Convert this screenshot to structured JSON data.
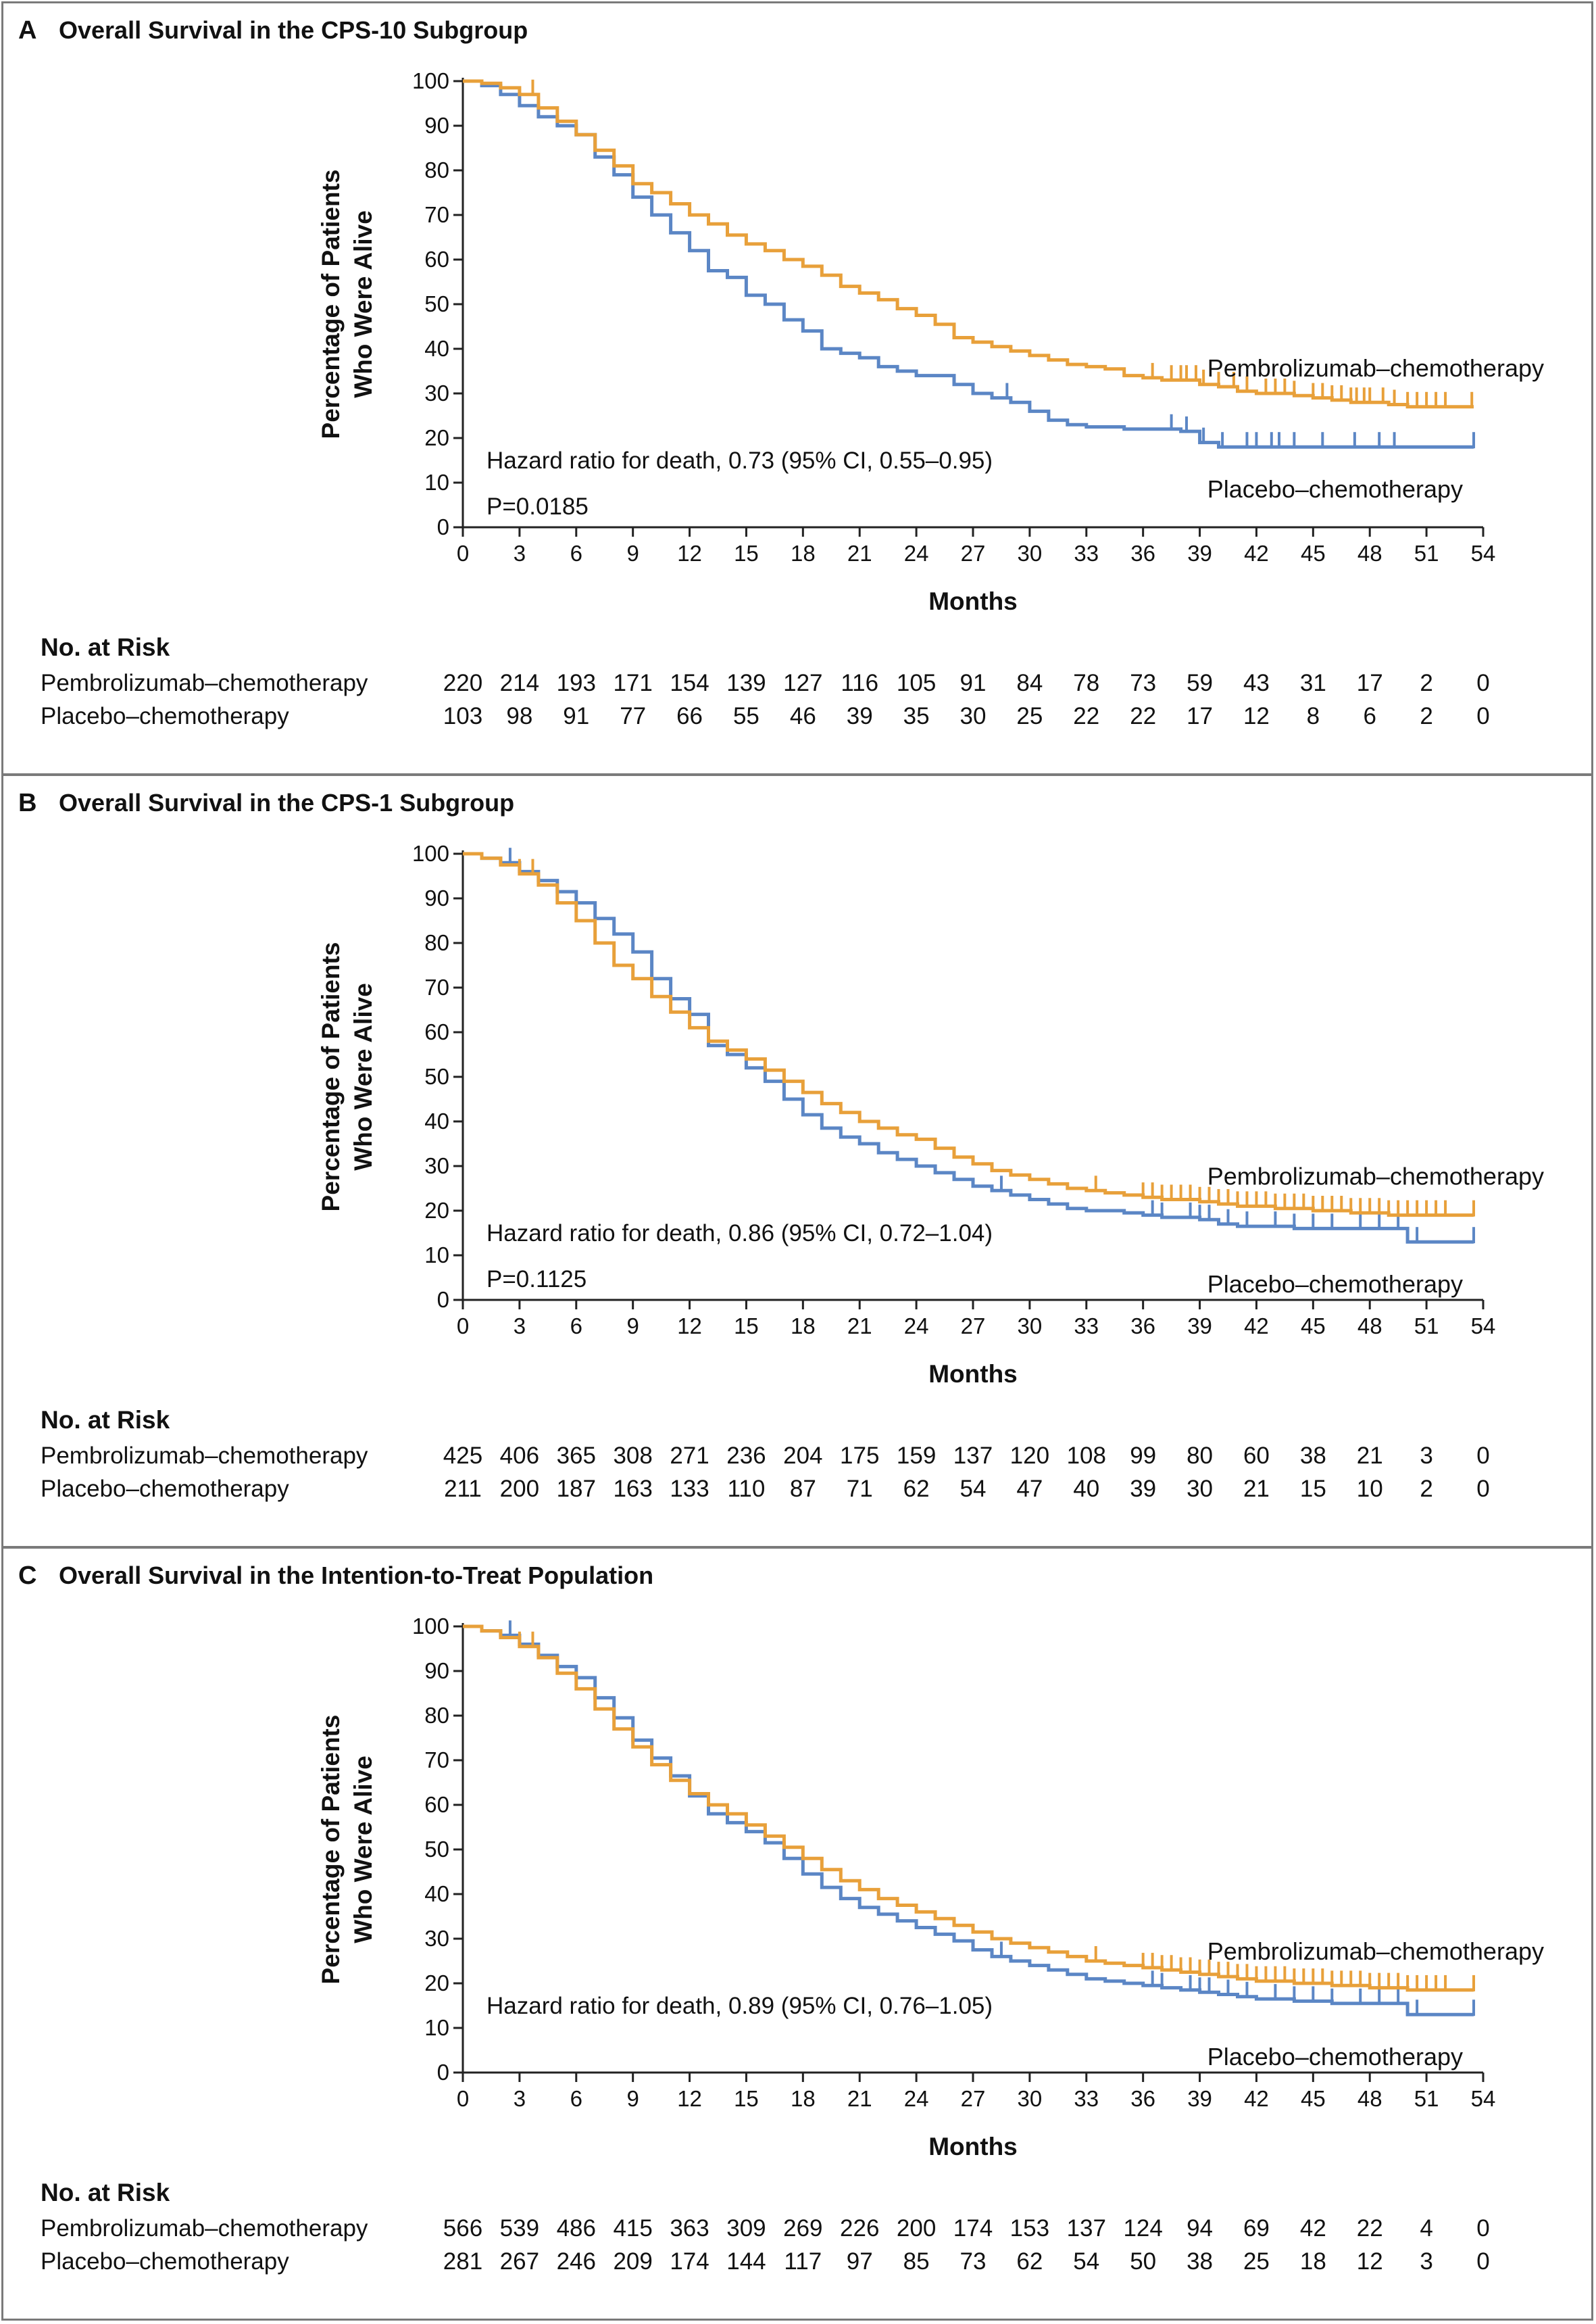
{
  "colors": {
    "pembro": "#E8A03A",
    "placebo": "#5B86C5",
    "axis": "#222222",
    "border": "#7a7a7a"
  },
  "x_axis": {
    "label": "Months",
    "ticks": [
      0,
      3,
      6,
      9,
      12,
      15,
      18,
      21,
      24,
      27,
      30,
      33,
      36,
      39,
      42,
      45,
      48,
      51,
      54
    ]
  },
  "y_axis": {
    "label_line1": "Percentage of Patients",
    "label_line2": "Who Were Alive",
    "ticks": [
      0,
      10,
      20,
      30,
      40,
      50,
      60,
      70,
      80,
      90,
      100
    ]
  },
  "risk_table_heading": "No. at Risk",
  "series_names": {
    "pembro": "Pembrolizumab–chemotherapy",
    "placebo": "Placebo–chemotherapy"
  },
  "chart_data": [
    {
      "type": "line",
      "panel_letter": "A",
      "title": "Overall Survival in the CPS-10 Subgroup",
      "xlabel": "Months",
      "ylabel": "Percentage of Patients Who Were Alive",
      "xlim": [
        0,
        54
      ],
      "ylim": [
        0,
        100
      ],
      "hazard_text": "Hazard ratio for death, 0.73 (95% CI, 0.55–0.95)",
      "p_text": "P=0.0185",
      "series": [
        {
          "name": "Pembrolizumab–chemotherapy",
          "x": [
            0,
            1,
            2,
            3,
            4,
            5,
            6,
            7,
            8,
            9,
            10,
            11,
            12,
            13,
            14,
            15,
            16,
            17,
            18,
            19,
            20,
            21,
            22,
            23,
            24,
            25,
            26,
            27,
            28,
            29,
            30,
            31,
            32,
            33,
            34,
            35,
            36,
            37,
            38,
            39,
            40,
            41,
            42,
            43,
            44,
            45,
            46,
            47,
            48,
            49,
            50,
            51,
            52,
            53.5
          ],
          "y": [
            100,
            99.5,
            98.5,
            97,
            94,
            91,
            88,
            84.5,
            81,
            77,
            75,
            72.5,
            70,
            68,
            65.5,
            63.5,
            62,
            60,
            58.5,
            56.5,
            54,
            52.5,
            51,
            49,
            47.5,
            45.5,
            42.5,
            41.5,
            40.5,
            39.5,
            38.5,
            37.5,
            36.5,
            36,
            35.5,
            34,
            33.5,
            33,
            33,
            32,
            31.5,
            30.5,
            30,
            30,
            29.5,
            29,
            28.5,
            28,
            28,
            27.5,
            27,
            27,
            27,
            27
          ],
          "censor_x": [
            3.7,
            36.5,
            37.5,
            38,
            38.3,
            38.8,
            39.2,
            40,
            40.8,
            41.5,
            42.5,
            43,
            43.5,
            44,
            45,
            45.5,
            46,
            46.5,
            47,
            47.3,
            47.7,
            48,
            48.7,
            49.3,
            50,
            50.5,
            51,
            51.5,
            52,
            53.4
          ]
        },
        {
          "name": "Placebo–chemotherapy",
          "x": [
            0,
            1,
            2,
            3,
            4,
            5,
            6,
            7,
            8,
            9,
            10,
            11,
            12,
            13,
            14,
            15,
            16,
            17,
            18,
            19,
            20,
            21,
            22,
            23,
            24,
            25,
            26,
            27,
            28,
            29,
            30,
            31,
            32,
            33,
            34,
            35,
            36,
            37,
            38,
            39,
            40,
            53.5
          ],
          "y": [
            100,
            99,
            97,
            94.5,
            92,
            90,
            88,
            83,
            79,
            74,
            70,
            66,
            62,
            57.5,
            56,
            52,
            50,
            46.5,
            44,
            40,
            39,
            38,
            36,
            35,
            34,
            34,
            32,
            30,
            29,
            28,
            26,
            24,
            23,
            22.5,
            22.5,
            22,
            22,
            22,
            21.5,
            19,
            18,
            18
          ],
          "censor_x": [
            28.8,
            37.5,
            38.3,
            39.2,
            40.2,
            41.5,
            42,
            42.8,
            43.2,
            44,
            45.5,
            47.2,
            48.5,
            49.3,
            53.5
          ]
        }
      ],
      "risk": {
        "pembro": [
          220,
          214,
          193,
          171,
          154,
          139,
          127,
          116,
          105,
          91,
          84,
          78,
          73,
          59,
          43,
          31,
          17,
          2,
          0
        ],
        "placebo": [
          103,
          98,
          91,
          77,
          66,
          55,
          46,
          39,
          35,
          30,
          25,
          22,
          22,
          17,
          12,
          8,
          6,
          2,
          0
        ]
      }
    },
    {
      "type": "line",
      "panel_letter": "B",
      "title": "Overall Survival in the CPS-1 Subgroup",
      "xlabel": "Months",
      "ylabel": "Percentage of Patients Who Were Alive",
      "xlim": [
        0,
        54
      ],
      "ylim": [
        0,
        100
      ],
      "hazard_text": "Hazard ratio for death, 0.86 (95% CI, 0.72–1.04)",
      "p_text": "P=0.1125",
      "series": [
        {
          "name": "Pembrolizumab–chemotherapy",
          "x": [
            0,
            1,
            2,
            3,
            4,
            5,
            6,
            7,
            8,
            9,
            10,
            11,
            12,
            13,
            14,
            15,
            16,
            17,
            18,
            19,
            20,
            21,
            22,
            23,
            24,
            25,
            26,
            27,
            28,
            29,
            30,
            31,
            32,
            33,
            34,
            35,
            36,
            37,
            38,
            39,
            40,
            41,
            42,
            43,
            44,
            45,
            46,
            47,
            48,
            49,
            50,
            51,
            52,
            53.5
          ],
          "y": [
            100,
            99,
            97.5,
            95.5,
            93,
            89,
            85,
            80,
            75,
            72,
            68,
            64.5,
            61,
            58,
            56,
            54,
            51.5,
            49,
            46.5,
            44,
            42,
            40,
            38.5,
            37,
            36,
            34,
            32,
            30.5,
            29,
            28,
            27,
            26,
            25,
            24.5,
            24,
            23.5,
            23,
            22.5,
            22.5,
            22,
            21.5,
            21,
            21,
            20.5,
            20.5,
            20,
            20,
            19.5,
            19.5,
            19,
            19,
            19,
            19,
            19
          ],
          "censor_x": [
            3,
            3.7,
            33.5,
            36,
            36.5,
            37,
            37.5,
            38,
            38.5,
            39,
            39.5,
            40,
            40.5,
            41,
            41.5,
            42,
            42.5,
            43,
            43.5,
            44,
            44.5,
            45,
            45.5,
            46,
            46.5,
            47,
            47.5,
            48,
            48.5,
            49,
            49.5,
            50,
            50.5,
            51,
            51.5,
            52,
            53.5
          ]
        },
        {
          "name": "Placebo–chemotherapy",
          "x": [
            0,
            1,
            2,
            3,
            4,
            5,
            6,
            7,
            8,
            9,
            10,
            11,
            12,
            13,
            14,
            15,
            16,
            17,
            18,
            19,
            20,
            21,
            22,
            23,
            24,
            25,
            26,
            27,
            28,
            29,
            30,
            31,
            32,
            33,
            34,
            35,
            36,
            37,
            38,
            39,
            40,
            41,
            42,
            43,
            44,
            45,
            46,
            47,
            48,
            49,
            50,
            51,
            52,
            53.5
          ],
          "y": [
            100,
            99,
            98,
            96,
            94,
            91.5,
            89,
            85.5,
            82,
            78,
            72,
            67.5,
            64,
            57,
            55,
            52,
            49,
            45,
            41.5,
            38.5,
            36.5,
            35,
            33,
            31.5,
            30,
            28.5,
            27,
            25.5,
            24.5,
            23.5,
            22.5,
            21.5,
            20.5,
            20,
            20,
            19.5,
            19,
            18.5,
            18.5,
            18,
            17,
            16.5,
            16.5,
            16.5,
            16,
            16,
            16,
            16,
            16,
            16,
            13,
            13,
            13,
            13
          ],
          "censor_x": [
            2.5,
            28.5,
            36.5,
            37,
            38.5,
            39,
            39.5,
            40.5,
            41.5,
            43,
            44,
            45,
            46,
            47.5,
            48.5,
            49.5,
            50.5,
            53.5
          ]
        }
      ],
      "risk": {
        "pembro": [
          425,
          406,
          365,
          308,
          271,
          236,
          204,
          175,
          159,
          137,
          120,
          108,
          99,
          80,
          60,
          38,
          21,
          3,
          0
        ],
        "placebo": [
          211,
          200,
          187,
          163,
          133,
          110,
          87,
          71,
          62,
          54,
          47,
          40,
          39,
          30,
          21,
          15,
          10,
          2,
          0
        ]
      }
    },
    {
      "type": "line",
      "panel_letter": "C",
      "title": "Overall Survival in the Intention-to-Treat Population",
      "xlabel": "Months",
      "ylabel": "Percentage of Patients Who Were Alive",
      "xlim": [
        0,
        54
      ],
      "ylim": [
        0,
        100
      ],
      "hazard_text": "Hazard ratio for death, 0.89 (95% CI, 0.76–1.05)",
      "p_text": "",
      "series": [
        {
          "name": "Pembrolizumab–chemotherapy",
          "x": [
            0,
            1,
            2,
            3,
            4,
            5,
            6,
            7,
            8,
            9,
            10,
            11,
            12,
            13,
            14,
            15,
            16,
            17,
            18,
            19,
            20,
            21,
            22,
            23,
            24,
            25,
            26,
            27,
            28,
            29,
            30,
            31,
            32,
            33,
            34,
            35,
            36,
            37,
            38,
            39,
            40,
            41,
            42,
            43,
            44,
            45,
            46,
            47,
            48,
            49,
            50,
            51,
            52,
            53.5
          ],
          "y": [
            100,
            99,
            97.5,
            95.5,
            93,
            89.5,
            86,
            81.5,
            77,
            73,
            69,
            65.5,
            62.5,
            60,
            58,
            55.5,
            53,
            50.5,
            48,
            45.5,
            43,
            41,
            39,
            37.5,
            36,
            34.5,
            33,
            31.5,
            30,
            29,
            28,
            27,
            26,
            25,
            24.5,
            24,
            23.5,
            23,
            22.5,
            22,
            21.5,
            21,
            20.5,
            20.5,
            20,
            20,
            19.5,
            19.5,
            19,
            19,
            18.5,
            18.5,
            18.5,
            18.5
          ],
          "censor_x": [
            3,
            3.7,
            33.5,
            36,
            36.5,
            37,
            37.5,
            38,
            38.5,
            39,
            39.5,
            40,
            40.5,
            41,
            41.5,
            42,
            42.5,
            43,
            43.5,
            44,
            44.5,
            45,
            45.5,
            46,
            46.5,
            47,
            47.5,
            48,
            48.5,
            49,
            49.5,
            50,
            50.5,
            51,
            51.5,
            52,
            53.5
          ]
        },
        {
          "name": "Placebo–chemotherapy",
          "x": [
            0,
            1,
            2,
            3,
            4,
            5,
            6,
            7,
            8,
            9,
            10,
            11,
            12,
            13,
            14,
            15,
            16,
            17,
            18,
            19,
            20,
            21,
            22,
            23,
            24,
            25,
            26,
            27,
            28,
            29,
            30,
            31,
            32,
            33,
            34,
            35,
            36,
            37,
            38,
            39,
            40,
            41,
            42,
            43,
            44,
            45,
            46,
            47,
            48,
            49,
            50,
            51,
            52,
            53.5
          ],
          "y": [
            100,
            99,
            98,
            96,
            93.5,
            91,
            88.5,
            84,
            79.5,
            74.5,
            70.5,
            66.5,
            62,
            58,
            56,
            54,
            51.5,
            48,
            44.5,
            41.5,
            39,
            37,
            35.5,
            34,
            32.5,
            31,
            29.5,
            27.5,
            26,
            25,
            24,
            23,
            22,
            21,
            20.5,
            20,
            19.5,
            19,
            18.5,
            18,
            17.5,
            17,
            16.5,
            16.5,
            16,
            16,
            15.5,
            15.5,
            15.5,
            15.5,
            13,
            13,
            13,
            13
          ],
          "censor_x": [
            2.5,
            28.5,
            36.5,
            37,
            38.5,
            39,
            39.5,
            40.5,
            41.5,
            43,
            44,
            45,
            46,
            47.5,
            48.5,
            49.5,
            50.5,
            53.5
          ]
        }
      ],
      "risk": {
        "pembro": [
          566,
          539,
          486,
          415,
          363,
          309,
          269,
          226,
          200,
          174,
          153,
          137,
          124,
          94,
          69,
          42,
          22,
          4,
          0
        ],
        "placebo": [
          281,
          267,
          246,
          209,
          174,
          144,
          117,
          97,
          85,
          73,
          62,
          54,
          50,
          38,
          25,
          18,
          12,
          3,
          0
        ]
      }
    }
  ]
}
